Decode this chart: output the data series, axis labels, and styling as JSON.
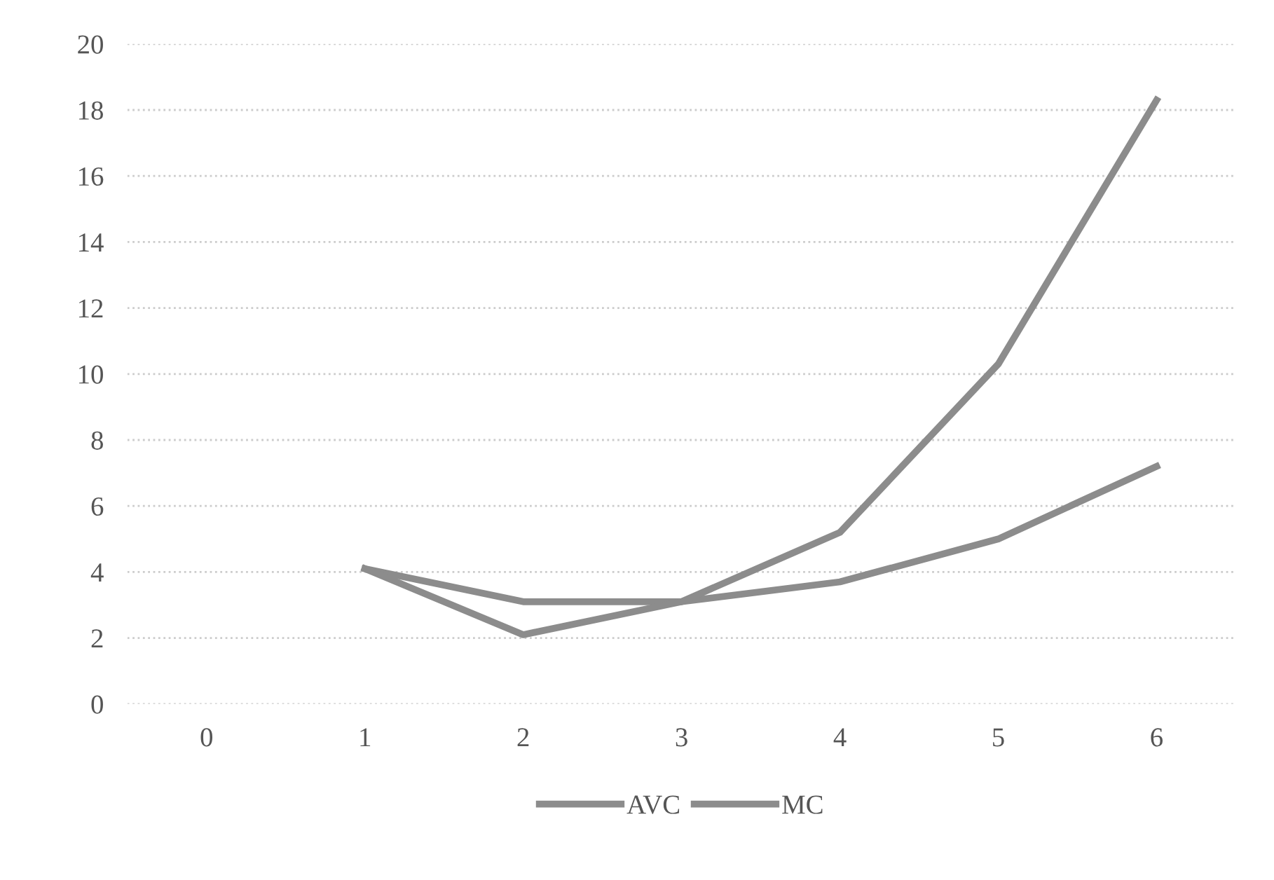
{
  "chart_data": {
    "type": "line",
    "categories": [
      "0",
      "1",
      "2",
      "3",
      "4",
      "5",
      "6"
    ],
    "series": [
      {
        "name": "AVC",
        "color": "#8c8c8c",
        "values": [
          null,
          4.1,
          3.1,
          3.1,
          3.7,
          5.0,
          7.2
        ]
      },
      {
        "name": "MC",
        "color": "#8c8c8c",
        "values": [
          null,
          4.1,
          2.1,
          3.1,
          5.2,
          10.3,
          18.3
        ]
      }
    ],
    "ylim": [
      0,
      20
    ],
    "yticks": [
      0,
      2,
      4,
      6,
      8,
      10,
      12,
      14,
      16,
      18,
      20
    ],
    "grid": "y",
    "legend": "bottom",
    "marker": "none",
    "line_style": "solid"
  }
}
